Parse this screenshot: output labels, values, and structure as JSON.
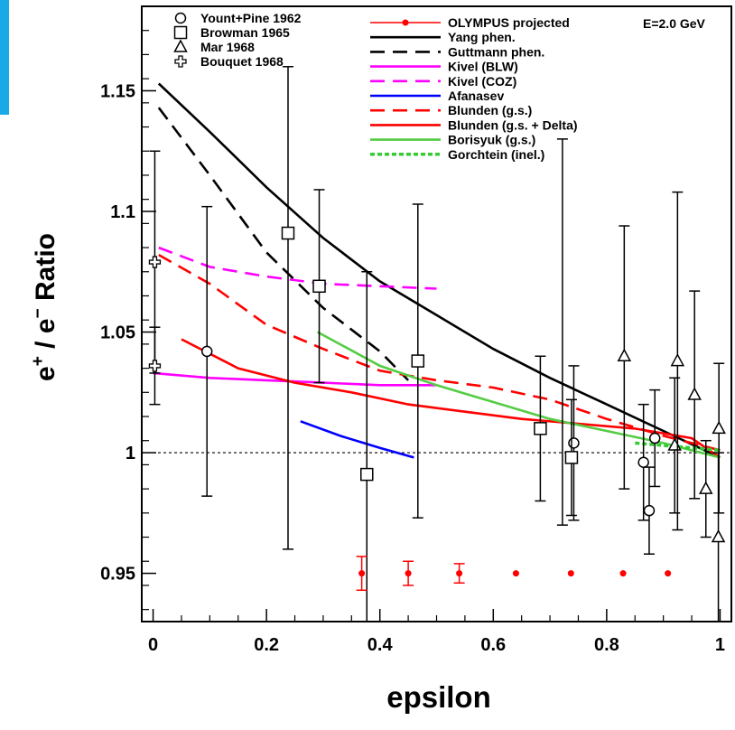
{
  "chart_data": {
    "type": "scatter",
    "title": "",
    "xlabel": "epsilon",
    "ylabel": "e+ / e- Ratio",
    "ylabel_parts": {
      "p1": "e",
      "sup1": "+",
      "p2": " / e",
      "sup2": "−",
      "p3": " Ratio"
    },
    "annotation": "E=2.0 GeV",
    "xlim": [
      -0.02,
      1.02
    ],
    "ylim": [
      0.93,
      1.185
    ],
    "x_ticks": [
      "0",
      "0.2",
      "0.4",
      "0.6",
      "0.8",
      "1"
    ],
    "y_ticks": [
      "0.95",
      "1",
      "1.05",
      "1.1",
      "1.15"
    ],
    "x_tick_values": [
      0,
      0.2,
      0.4,
      0.6,
      0.8,
      1
    ],
    "y_tick_values": [
      0.95,
      1.0,
      1.05,
      1.1,
      1.15
    ],
    "reference_line": 1.0,
    "grid": false,
    "legend_position": "top",
    "data_series": [
      {
        "name": "Yount+Pine 1962",
        "marker": "circle",
        "points": [
          {
            "x": 0.095,
            "y": 1.042,
            "lo": 0.982,
            "hi": 1.102
          },
          {
            "x": 0.742,
            "y": 1.004,
            "lo": 0.972,
            "hi": 1.036
          },
          {
            "x": 0.865,
            "y": 0.996,
            "lo": 0.972,
            "hi": 1.02
          },
          {
            "x": 0.875,
            "y": 0.976,
            "lo": 0.958,
            "hi": 0.994
          },
          {
            "x": 0.885,
            "y": 1.006,
            "lo": 0.986,
            "hi": 1.026
          }
        ]
      },
      {
        "name": "Browman 1965",
        "marker": "square",
        "points": [
          {
            "x": 0.238,
            "y": 1.091,
            "lo": 0.96,
            "hi": 1.16
          },
          {
            "x": 0.293,
            "y": 1.069,
            "lo": 1.029,
            "hi": 1.109
          },
          {
            "x": 0.377,
            "y": 0.991,
            "lo": 0.905,
            "hi": 1.075
          },
          {
            "x": 0.467,
            "y": 1.038,
            "lo": 0.973,
            "hi": 1.103
          },
          {
            "x": 0.683,
            "y": 1.01,
            "lo": 0.98,
            "hi": 1.04
          },
          {
            "x": 0.738,
            "y": 0.998,
            "lo": 0.974,
            "hi": 1.022
          }
        ]
      },
      {
        "name": "Mar 1968",
        "marker": "triangle",
        "points": [
          {
            "x": 0.831,
            "y": 1.04,
            "lo": 0.985,
            "hi": 1.094
          },
          {
            "x": 0.92,
            "y": 1.003,
            "lo": 0.975,
            "hi": 1.031
          },
          {
            "x": 0.925,
            "y": 1.038,
            "lo": 0.968,
            "hi": 1.108
          },
          {
            "x": 0.955,
            "y": 1.024,
            "lo": 0.981,
            "hi": 1.067
          },
          {
            "x": 0.975,
            "y": 0.985,
            "lo": 0.965,
            "hi": 1.005
          },
          {
            "x": 0.998,
            "y": 1.01,
            "lo": 0.975,
            "hi": 1.037
          },
          {
            "x": 0.997,
            "y": 0.965,
            "lo": 0.93,
            "hi": 1.0
          }
        ]
      },
      {
        "name": "Bouquet 1968",
        "marker": "cross",
        "points": [
          {
            "x": 0.003,
            "y": 1.079,
            "lo": 1.033,
            "hi": 1.125
          },
          {
            "x": 0.003,
            "y": 1.036,
            "lo": 1.02,
            "hi": 1.052
          }
        ]
      },
      {
        "name": "OLYMPUS projected",
        "marker": "dot",
        "color": "#ff0000",
        "points": [
          {
            "x": 0.368,
            "y": 0.95,
            "lo": 0.943,
            "hi": 0.957
          },
          {
            "x": 0.45,
            "y": 0.95,
            "lo": 0.945,
            "hi": 0.955
          },
          {
            "x": 0.54,
            "y": 0.95,
            "lo": 0.946,
            "hi": 0.954
          },
          {
            "x": 0.64,
            "y": 0.95
          },
          {
            "x": 0.737,
            "y": 0.95
          },
          {
            "x": 0.829,
            "y": 0.95
          },
          {
            "x": 0.908,
            "y": 0.95
          }
        ]
      },
      {
        "name": "",
        "marker": "none",
        "points": [
          {
            "x": 0.722,
            "y": 1.05,
            "lo": 0.97,
            "hi": 1.13
          }
        ]
      }
    ],
    "curve_series": [
      {
        "name": "Yang phen.",
        "color": "#000000",
        "dash": "solid",
        "points": [
          [
            0.01,
            1.153
          ],
          [
            0.1,
            1.133
          ],
          [
            0.2,
            1.11
          ],
          [
            0.3,
            1.089
          ],
          [
            0.4,
            1.071
          ],
          [
            0.5,
            1.057
          ],
          [
            0.6,
            1.043
          ],
          [
            0.7,
            1.031
          ],
          [
            0.8,
            1.02
          ],
          [
            0.9,
            1.009
          ],
          [
            1.0,
            0.998
          ]
        ]
      },
      {
        "name": "Guttmann phen.",
        "color": "#000000",
        "dash": "dashed",
        "points": [
          [
            0.01,
            1.143
          ],
          [
            0.1,
            1.115
          ],
          [
            0.2,
            1.083
          ],
          [
            0.3,
            1.06
          ],
          [
            0.4,
            1.042
          ],
          [
            0.45,
            1.03
          ]
        ]
      },
      {
        "name": "Kivel (BLW)",
        "color": "#ff00ff",
        "dash": "solid",
        "points": [
          [
            0.0,
            1.033
          ],
          [
            0.1,
            1.031
          ],
          [
            0.2,
            1.03
          ],
          [
            0.3,
            1.029
          ],
          [
            0.4,
            1.028
          ],
          [
            0.5,
            1.028
          ]
        ]
      },
      {
        "name": "Kivel (COZ)",
        "color": "#ff00ff",
        "dash": "dashed",
        "points": [
          [
            0.01,
            1.085
          ],
          [
            0.1,
            1.077
          ],
          [
            0.2,
            1.073
          ],
          [
            0.3,
            1.07
          ],
          [
            0.4,
            1.069
          ],
          [
            0.5,
            1.068
          ]
        ]
      },
      {
        "name": "Afanasev",
        "color": "#0000ff",
        "dash": "solid",
        "points": [
          [
            0.26,
            1.013
          ],
          [
            0.33,
            1.007
          ],
          [
            0.4,
            1.002
          ],
          [
            0.46,
            0.998
          ]
        ]
      },
      {
        "name": "Blunden (g.s.)",
        "color": "#ff0000",
        "dash": "dashed",
        "points": [
          [
            0.01,
            1.082
          ],
          [
            0.1,
            1.07
          ],
          [
            0.2,
            1.053
          ],
          [
            0.3,
            1.043
          ],
          [
            0.4,
            1.034
          ],
          [
            0.5,
            1.03
          ],
          [
            0.6,
            1.027
          ],
          [
            0.7,
            1.022
          ],
          [
            0.8,
            1.014
          ],
          [
            0.9,
            1.007
          ],
          [
            1.0,
            1.001
          ]
        ]
      },
      {
        "name": "Blunden (g.s. + Delta)",
        "color": "#ff0000",
        "dash": "solid",
        "points": [
          [
            0.05,
            1.047
          ],
          [
            0.15,
            1.035
          ],
          [
            0.25,
            1.029
          ],
          [
            0.35,
            1.025
          ],
          [
            0.45,
            1.02
          ],
          [
            0.55,
            1.017
          ],
          [
            0.65,
            1.014
          ],
          [
            0.75,
            1.012
          ],
          [
            0.85,
            1.01
          ],
          [
            0.95,
            1.006
          ],
          [
            1.0,
            0.998
          ]
        ]
      },
      {
        "name": "Borisyuk (g.s.)",
        "color": "#55cc44",
        "dash": "solid",
        "points": [
          [
            0.29,
            1.05
          ],
          [
            0.4,
            1.036
          ],
          [
            0.5,
            1.028
          ],
          [
            0.6,
            1.021
          ],
          [
            0.7,
            1.014
          ],
          [
            0.8,
            1.009
          ],
          [
            0.9,
            1.004
          ],
          [
            1.0,
            0.998
          ]
        ]
      },
      {
        "name": "Gorchtein (inel.)",
        "color": "#33cc33",
        "dash": "dotted",
        "points": [
          [
            0.85,
            1.004
          ],
          [
            0.9,
            1.003
          ],
          [
            0.95,
            1.002
          ],
          [
            1.0,
            1.001
          ]
        ]
      }
    ]
  },
  "legend": {
    "left": [
      {
        "label": "Yount+Pine 1962",
        "marker": "circle"
      },
      {
        "label": "Browman 1965",
        "marker": "square"
      },
      {
        "label": "Mar 1968",
        "marker": "triangle"
      },
      {
        "label": "Bouquet 1968",
        "marker": "cross"
      }
    ],
    "right": [
      {
        "label": "OLYMPUS projected",
        "style": "dot-line",
        "color": "#ff0000"
      },
      {
        "label": "Yang phen.",
        "style": "solid",
        "color": "#000000"
      },
      {
        "label": "Guttmann phen.",
        "style": "dashed",
        "color": "#000000"
      },
      {
        "label": "Kivel (BLW)",
        "style": "solid",
        "color": "#ff00ff"
      },
      {
        "label": "Kivel (COZ)",
        "style": "dashed",
        "color": "#ff00ff"
      },
      {
        "label": "Afanasev",
        "style": "solid",
        "color": "#0000ff"
      },
      {
        "label": "Blunden (g.s.)",
        "style": "dashed",
        "color": "#ff0000"
      },
      {
        "label": "Blunden (g.s. + Delta)",
        "style": "solid",
        "color": "#ff0000"
      },
      {
        "label": "Borisyuk (g.s.)",
        "style": "solid",
        "color": "#55cc44"
      },
      {
        "label": "Gorchtein (inel.)",
        "style": "dotted",
        "color": "#33cc33"
      }
    ]
  }
}
